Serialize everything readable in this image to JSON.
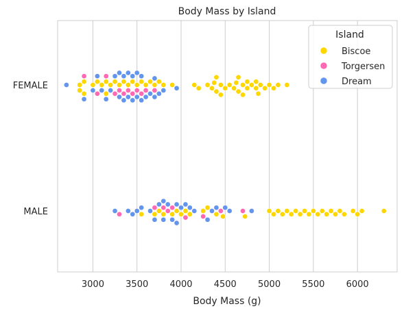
{
  "chart_data": {
    "type": "scatter",
    "subtype": "swarm",
    "title": "Body Mass by Island",
    "xlabel": "Body Mass (g)",
    "ylabel": "",
    "xlim": [
      2600,
      6450
    ],
    "x_ticks": [
      3000,
      3500,
      4000,
      4500,
      5000,
      5500,
      6000
    ],
    "x_tick_labels": [
      "3000",
      "3500",
      "4000",
      "4500",
      "5000",
      "5500",
      "6000"
    ],
    "categories": [
      "FEMALE",
      "MALE"
    ],
    "grid": "vertical",
    "legend": {
      "title": "Island",
      "position": "top-right"
    },
    "series": [
      {
        "name": "Biscoe",
        "color": "#FFD700",
        "values": {
          "FEMALE": [
            2850,
            2850,
            2900,
            2900,
            3000,
            3050,
            3100,
            3150,
            3150,
            3200,
            3250,
            3300,
            3350,
            3400,
            3450,
            3500,
            3550,
            3600,
            3650,
            3700,
            3750,
            3800,
            3900,
            4150,
            4200,
            4300,
            4350,
            4375,
            4400,
            4400,
            4450,
            4450,
            4500,
            4550,
            4600,
            4625,
            4650,
            4650,
            4700,
            4700,
            4750,
            4750,
            4800,
            4850,
            4850,
            4875,
            4900,
            4950,
            5000,
            5050,
            5100,
            5200
          ],
          "MALE": [
            3550,
            3700,
            3750,
            3800,
            3900,
            3950,
            4000,
            4050,
            4100,
            4250,
            4300,
            4400,
            4475,
            4725,
            5000,
            5050,
            5100,
            5150,
            5200,
            5250,
            5300,
            5350,
            5400,
            5450,
            5500,
            5550,
            5600,
            5650,
            5700,
            5750,
            5800,
            5850,
            5950,
            6000,
            6050,
            6300
          ]
        }
      },
      {
        "name": "Torgersen",
        "color": "#FF69B4",
        "values": {
          "FEMALE": [
            2900,
            3050,
            3150,
            3250,
            3300,
            3350,
            3400,
            3450,
            3500,
            3550,
            3600,
            3700
          ],
          "MALE": [
            3300,
            3700,
            3800,
            3850,
            3900,
            4050,
            4250,
            4450,
            4700
          ]
        }
      },
      {
        "name": "Dream",
        "color": "#6495ED",
        "values": {
          "FEMALE": [
            2700,
            2900,
            3000,
            3050,
            3100,
            3150,
            3200,
            3250,
            3300,
            3300,
            3350,
            3350,
            3400,
            3400,
            3450,
            3450,
            3500,
            3500,
            3550,
            3550,
            3600,
            3650,
            3700,
            3700,
            3750,
            3800,
            3950
          ],
          "MALE": [
            3250,
            3400,
            3450,
            3500,
            3550,
            3650,
            3700,
            3750,
            3800,
            3800,
            3850,
            3900,
            3950,
            3950,
            4000,
            4050,
            4100,
            4150,
            4300,
            4350,
            4400,
            4500,
            4550,
            4800
          ]
        }
      }
    ]
  }
}
